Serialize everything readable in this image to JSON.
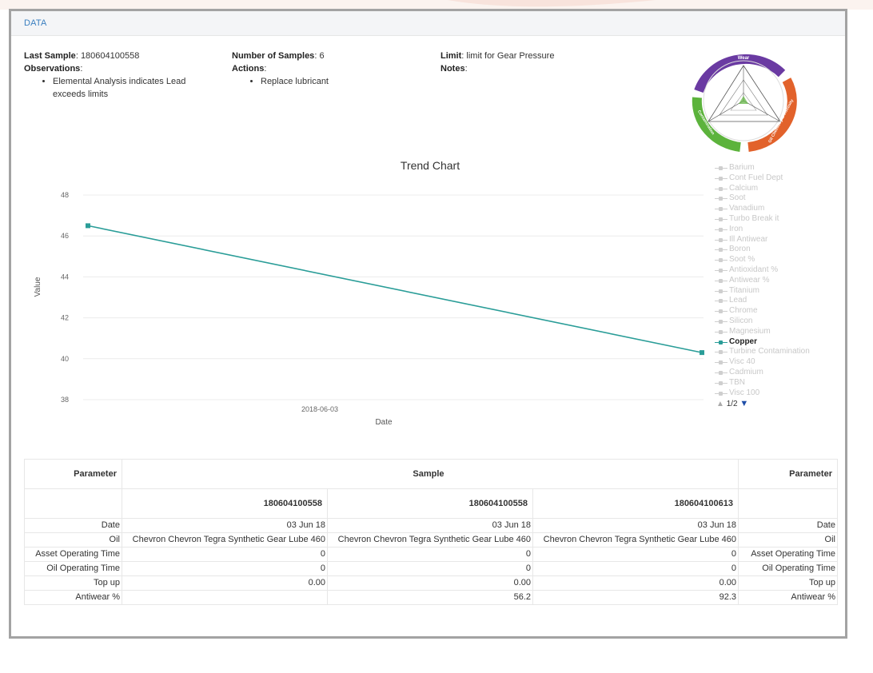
{
  "header": {
    "title": "DATA"
  },
  "summary": {
    "last_sample_label": "Last Sample",
    "last_sample_value": "180604100558",
    "observations_label": "Observations",
    "observations": [
      "Elemental Analysis indicates Lead exceeds limits"
    ],
    "number_of_samples_label": "Number of Samples",
    "number_of_samples_value": "6",
    "actions_label": "Actions",
    "actions": [
      "Replace lubricant"
    ],
    "limit_label": "Limit",
    "limit_value": "limit for Gear Pressure",
    "notes_label": "Notes"
  },
  "wheel": {
    "segments": [
      "Wear",
      "Oil Chemistry & Viscosity",
      "Contamination"
    ],
    "colors": [
      "#6a3aa2",
      "#e2622b",
      "#5cb33c"
    ]
  },
  "chart_data": {
    "type": "line",
    "title": "Trend Chart",
    "xlabel": "Date",
    "ylabel": "Value",
    "ylim": [
      38,
      48
    ],
    "yticks": [
      38,
      40,
      42,
      44,
      46,
      48
    ],
    "xtick_labels": [
      "2018-06-03"
    ],
    "x": [
      "2018-06-03 start",
      "2018-06-03 end"
    ],
    "series": [
      {
        "name": "Copper",
        "values": [
          46.5,
          40.3
        ],
        "color": "#2a9d98"
      }
    ],
    "grid": true,
    "legend_placement": "right"
  },
  "legend": {
    "items": [
      "Barium",
      "Cont Fuel Dept",
      "Calcium",
      "Soot",
      "Vanadium",
      "Turbo Break it",
      "Iron",
      "Ill Antiwear",
      "Boron",
      "Soot %",
      "Antioxidant %",
      "Antiwear %",
      "Titanium",
      "Lead",
      "Chrome",
      "Silicon",
      "Magnesium",
      "Copper",
      "Turbine Contamination",
      "Visc 40",
      "Cadmium",
      "TBN",
      "Visc 100"
    ],
    "active": "Copper",
    "page": "1/2"
  },
  "table": {
    "param_header": "Parameter",
    "sample_header": "Sample",
    "param_header_right": "Parameter",
    "samples": [
      "180604100558",
      "180604100558",
      "180604100613"
    ],
    "rows": [
      {
        "label": "Date",
        "values": [
          "03 Jun 18",
          "03 Jun 18",
          "03 Jun 18"
        ],
        "right": "Date"
      },
      {
        "label": "Oil",
        "values": [
          "Chevron Chevron Tegra Synthetic Gear Lube 460",
          "Chevron Chevron Tegra Synthetic Gear Lube 460",
          "Chevron Chevron Tegra Synthetic Gear Lube 460"
        ],
        "right": "Oil"
      },
      {
        "label": "Asset Operating Time",
        "values": [
          "0",
          "0",
          "0"
        ],
        "right": "Asset Operating Time"
      },
      {
        "label": "Oil Operating Time",
        "values": [
          "0",
          "0",
          "0"
        ],
        "right": "Oil Operating Time"
      },
      {
        "label": "Top up",
        "values": [
          "0.00",
          "0.00",
          "0.00"
        ],
        "right": "Top up"
      },
      {
        "label": "Antiwear %",
        "values": [
          "",
          "56.2",
          "92.3"
        ],
        "right": "Antiwear %"
      }
    ]
  }
}
